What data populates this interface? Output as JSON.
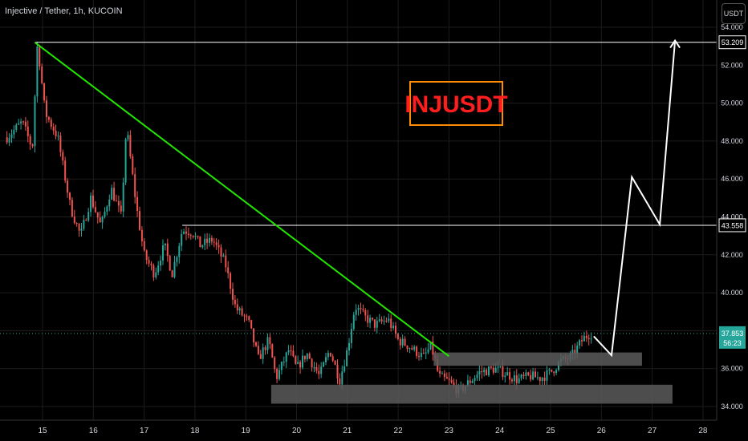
{
  "header": {
    "title": "Injective / Tether, 1h, KUCOIN",
    "currency_button": "USDT"
  },
  "chart_data": {
    "type": "candlestick",
    "symbol_label": "INJUSDT",
    "ylim": [
      33.7,
      55.2
    ],
    "xlim": [
      14.45,
      28.4
    ],
    "y_ticks": [
      34,
      36,
      38,
      40,
      42,
      44,
      46,
      48,
      50,
      52,
      54
    ],
    "x_ticks": [
      15,
      16,
      17,
      18,
      19,
      20,
      21,
      22,
      23,
      24,
      25,
      26,
      27,
      28
    ],
    "price_labels": [
      {
        "value": 53.209,
        "text": "53.209"
      },
      {
        "value": 43.558,
        "text": "43.558"
      }
    ],
    "current_price": {
      "value": 37.853,
      "text": "37.853",
      "countdown": "56:23"
    },
    "anchors": [
      [
        14.3,
        48.2
      ],
      [
        14.6,
        49.0
      ],
      [
        14.8,
        47.6
      ],
      [
        14.9,
        53.2
      ],
      [
        15.05,
        49.5
      ],
      [
        15.3,
        48.2
      ],
      [
        15.55,
        44.5
      ],
      [
        15.75,
        43.0
      ],
      [
        15.95,
        45.0
      ],
      [
        16.15,
        43.5
      ],
      [
        16.35,
        45.5
      ],
      [
        16.55,
        44.0
      ],
      [
        16.65,
        48.8
      ],
      [
        16.85,
        44.5
      ],
      [
        17.0,
        42.0
      ],
      [
        17.2,
        41.0
      ],
      [
        17.4,
        42.5
      ],
      [
        17.55,
        41.0
      ],
      [
        17.75,
        43.3
      ],
      [
        17.95,
        43.2
      ],
      [
        18.1,
        42.5
      ],
      [
        18.35,
        42.8
      ],
      [
        18.6,
        41.5
      ],
      [
        18.8,
        39.2
      ],
      [
        19.05,
        38.5
      ],
      [
        19.25,
        36.5
      ],
      [
        19.45,
        37.5
      ],
      [
        19.6,
        35.5
      ],
      [
        19.85,
        37.0
      ],
      [
        20.0,
        36.0
      ],
      [
        20.2,
        36.8
      ],
      [
        20.45,
        35.6
      ],
      [
        20.65,
        37.0
      ],
      [
        20.85,
        35.4
      ],
      [
        21.0,
        37.0
      ],
      [
        21.15,
        39.3
      ],
      [
        21.35,
        38.7
      ],
      [
        21.55,
        38.3
      ],
      [
        21.8,
        38.6
      ],
      [
        22.0,
        37.5
      ],
      [
        22.2,
        37.2
      ],
      [
        22.5,
        36.6
      ],
      [
        22.65,
        37.2
      ],
      [
        22.8,
        35.6
      ],
      [
        23.0,
        35.3
      ],
      [
        23.2,
        34.8
      ],
      [
        23.4,
        35.3
      ],
      [
        23.6,
        35.8
      ],
      [
        23.9,
        36.0
      ],
      [
        24.15,
        35.7
      ],
      [
        24.35,
        35.4
      ],
      [
        24.6,
        35.6
      ],
      [
        24.8,
        35.5
      ],
      [
        25.0,
        35.8
      ],
      [
        25.2,
        36.4
      ],
      [
        25.4,
        36.6
      ],
      [
        25.55,
        37.2
      ],
      [
        25.65,
        37.6
      ],
      [
        25.75,
        37.8
      ],
      [
        25.8,
        37.85
      ]
    ],
    "trendline_green": [
      [
        14.85,
        53.2
      ],
      [
        23.0,
        36.65
      ]
    ],
    "horizontal_lines": [
      {
        "y": 53.209,
        "x_start": 14.85
      },
      {
        "y": 43.558,
        "x_start": 17.75
      }
    ],
    "zones": [
      {
        "x_range": [
          22.7,
          26.8
        ],
        "y_range": [
          36.15,
          36.85
        ]
      },
      {
        "x_range": [
          19.5,
          27.4
        ],
        "y_range": [
          34.15,
          35.15
        ]
      }
    ],
    "projection_path": [
      [
        25.85,
        37.7
      ],
      [
        26.2,
        36.7
      ],
      [
        26.6,
        46.1
      ],
      [
        27.15,
        43.6
      ],
      [
        27.45,
        53.3
      ]
    ],
    "colors": {
      "up": "#26a69a",
      "down": "#ef5350",
      "trend": "#22e600",
      "lines": "#ffffff",
      "zone": "#5a5a5a",
      "grid": "#1c1c1c",
      "label_border": "#ff8c00",
      "label_text": "#ff1e1e",
      "current": "#26a69a"
    }
  }
}
